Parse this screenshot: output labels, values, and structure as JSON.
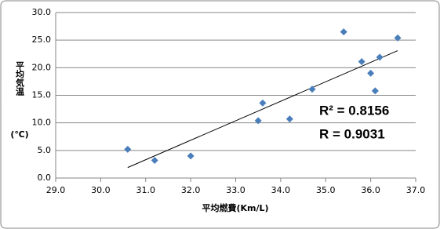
{
  "chart_data": {
    "type": "scatter",
    "x_label": "平均燃費(Km/L)",
    "y_label": "平均気温",
    "y_label_unit": "(℃)",
    "x": [
      30.6,
      31.2,
      32.0,
      33.5,
      33.6,
      34.2,
      34.7,
      35.4,
      35.8,
      36.0,
      36.1,
      36.2,
      36.6
    ],
    "series": [
      {
        "color": "#4a7ebb",
        "values": [
          5.2,
          3.2,
          4.0,
          10.4,
          13.6,
          10.7,
          16.1,
          26.5,
          21.1,
          19.0,
          15.8,
          21.9,
          25.4
        ]
      }
    ],
    "trendline": {
      "x": [
        30.6,
        36.6
      ],
      "y": [
        1.9,
        23.1
      ],
      "color": "#000000"
    },
    "annotations": [
      "R² = 0.8156",
      "R = 0.9031"
    ],
    "xlim": [
      29,
      37
    ],
    "xticks": [
      {
        "value": 29,
        "label": "29.0"
      },
      {
        "value": 30,
        "label": "30.0"
      },
      {
        "value": 31,
        "label": "31.0"
      },
      {
        "value": 32,
        "label": "32.0"
      },
      {
        "value": 33,
        "label": "33.0"
      },
      {
        "value": 34,
        "label": "34.0"
      },
      {
        "value": 35,
        "label": "35.0"
      },
      {
        "value": 36,
        "label": "36.0"
      },
      {
        "value": 37,
        "label": "37.0"
      }
    ],
    "ylim": [
      0,
      30
    ],
    "yticks": [
      {
        "value": 0,
        "label": "0.0"
      },
      {
        "value": 5,
        "label": "5.0"
      },
      {
        "value": 10,
        "label": "10.0"
      },
      {
        "value": 15,
        "label": "15.0"
      },
      {
        "value": 20,
        "label": "20.0"
      },
      {
        "value": 25,
        "label": "25.0"
      },
      {
        "value": 30,
        "label": "30.0"
      }
    ],
    "grid": true
  }
}
